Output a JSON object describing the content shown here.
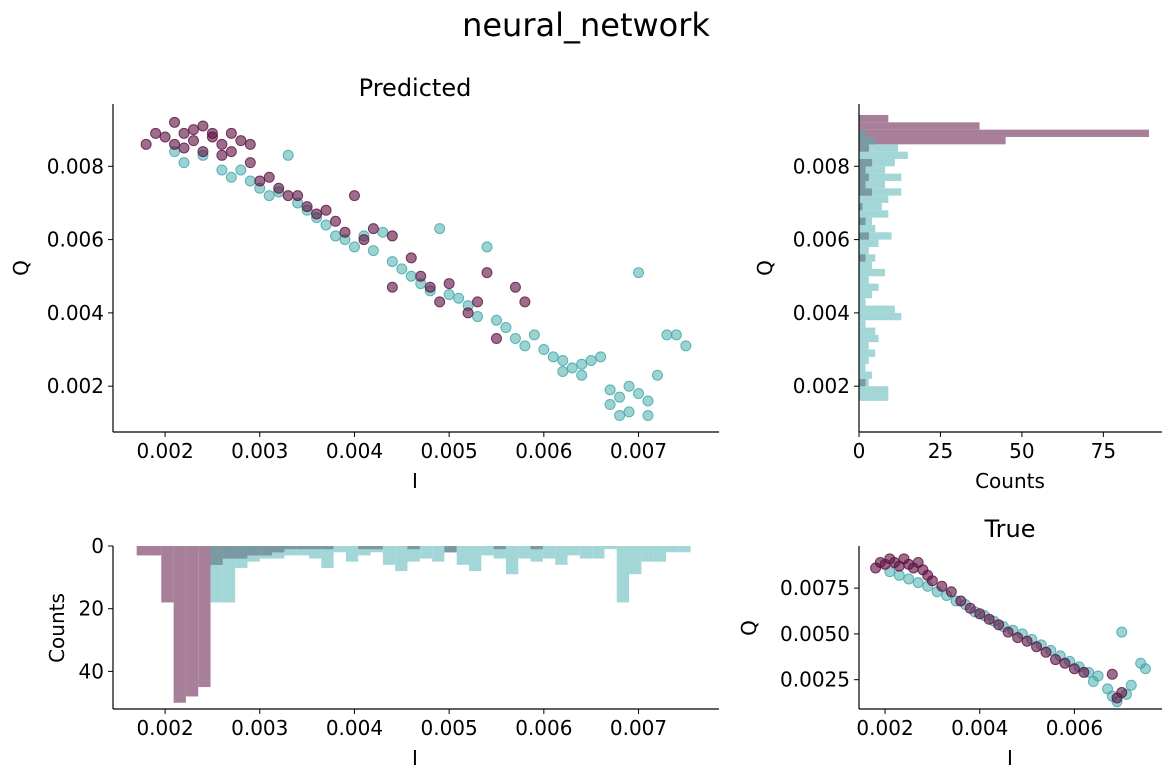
{
  "figure": {
    "suptitle": "neural_network"
  },
  "colors": {
    "class_a": "#5c0e3f",
    "class_b": "#3aa6a6",
    "hist_a": "#a77f98",
    "hist_b": "#a3d6d6",
    "hist_overlap": "#7a9aa3"
  },
  "chart_data": [
    {
      "id": "predicted",
      "type": "scatter",
      "title": "Predicted",
      "xlabel": "I",
      "ylabel": "Q",
      "xlim": [
        0.00145,
        0.00785
      ],
      "ylim": [
        0.00075,
        0.0097
      ],
      "xticks": [
        "0.002",
        "0.003",
        "0.004",
        "0.005",
        "0.006",
        "0.007"
      ],
      "yticks": [
        "0.002",
        "0.004",
        "0.006",
        "0.008"
      ],
      "grid": false,
      "series": [
        {
          "points": [
            [
              0.0018,
              0.0086
            ],
            [
              0.0019,
              0.0089
            ],
            [
              0.002,
              0.0088
            ],
            [
              0.0021,
              0.0092
            ],
            [
              0.0022,
              0.0089
            ],
            [
              0.0023,
              0.0087
            ],
            [
              0.0024,
              0.0091
            ],
            [
              0.0025,
              0.0088
            ],
            [
              0.0026,
              0.0086
            ],
            [
              0.0027,
              0.0089
            ],
            [
              0.0028,
              0.0087
            ],
            [
              0.0029,
              0.0086
            ],
            [
              0.0022,
              0.0085
            ],
            [
              0.0024,
              0.0084
            ],
            [
              0.0026,
              0.0083
            ],
            [
              0.0021,
              0.0086
            ],
            [
              0.0023,
              0.009
            ],
            [
              0.0025,
              0.0089
            ],
            [
              0.0027,
              0.0084
            ],
            [
              0.0029,
              0.0081
            ],
            [
              0.0031,
              0.0077
            ],
            [
              0.0032,
              0.0074
            ],
            [
              0.0034,
              0.0072
            ],
            [
              0.0035,
              0.0069
            ],
            [
              0.0036,
              0.0067
            ],
            [
              0.0038,
              0.0065
            ],
            [
              0.0039,
              0.0062
            ],
            [
              0.004,
              0.0072
            ],
            [
              0.0041,
              0.006
            ],
            [
              0.0042,
              0.0063
            ],
            [
              0.0044,
              0.0061
            ],
            [
              0.0046,
              0.0055
            ],
            [
              0.0047,
              0.005
            ],
            [
              0.0048,
              0.0047
            ],
            [
              0.0049,
              0.0043
            ],
            [
              0.005,
              0.0048
            ],
            [
              0.0052,
              0.004
            ],
            [
              0.0053,
              0.0043
            ],
            [
              0.0054,
              0.0051
            ],
            [
              0.0055,
              0.0033
            ],
            [
              0.0057,
              0.0047
            ],
            [
              0.0058,
              0.0043
            ],
            [
              0.0044,
              0.0047
            ],
            [
              0.0037,
              0.0068
            ],
            [
              0.0033,
              0.0072
            ],
            [
              0.003,
              0.0076
            ]
          ]
        },
        {
          "points": [
            [
              0.0021,
              0.0084
            ],
            [
              0.0022,
              0.0081
            ],
            [
              0.0024,
              0.0083
            ],
            [
              0.0026,
              0.0079
            ],
            [
              0.0027,
              0.0077
            ],
            [
              0.0028,
              0.0079
            ],
            [
              0.0029,
              0.0076
            ],
            [
              0.003,
              0.0074
            ],
            [
              0.0031,
              0.0072
            ],
            [
              0.0032,
              0.0073
            ],
            [
              0.0033,
              0.0083
            ],
            [
              0.0034,
              0.007
            ],
            [
              0.0035,
              0.0068
            ],
            [
              0.0036,
              0.0066
            ],
            [
              0.0037,
              0.0064
            ],
            [
              0.0038,
              0.0061
            ],
            [
              0.0039,
              0.006
            ],
            [
              0.004,
              0.0058
            ],
            [
              0.0041,
              0.0061
            ],
            [
              0.0042,
              0.0057
            ],
            [
              0.0043,
              0.0062
            ],
            [
              0.0044,
              0.0054
            ],
            [
              0.0045,
              0.0052
            ],
            [
              0.0046,
              0.005
            ],
            [
              0.0047,
              0.0048
            ],
            [
              0.0048,
              0.0046
            ],
            [
              0.0049,
              0.0063
            ],
            [
              0.005,
              0.0045
            ],
            [
              0.0051,
              0.0044
            ],
            [
              0.0052,
              0.0042
            ],
            [
              0.0053,
              0.0039
            ],
            [
              0.0054,
              0.0058
            ],
            [
              0.0055,
              0.0038
            ],
            [
              0.0056,
              0.0036
            ],
            [
              0.0057,
              0.0033
            ],
            [
              0.0058,
              0.0031
            ],
            [
              0.0059,
              0.0034
            ],
            [
              0.006,
              0.003
            ],
            [
              0.0061,
              0.0028
            ],
            [
              0.0062,
              0.0027
            ],
            [
              0.0063,
              0.0025
            ],
            [
              0.0064,
              0.0023
            ],
            [
              0.0065,
              0.0027
            ],
            [
              0.0066,
              0.0028
            ],
            [
              0.0067,
              0.0015
            ],
            [
              0.0068,
              0.0017
            ],
            [
              0.0069,
              0.0013
            ],
            [
              0.007,
              0.0051
            ],
            [
              0.0071,
              0.0016
            ],
            [
              0.0072,
              0.0023
            ],
            [
              0.0073,
              0.0034
            ],
            [
              0.0074,
              0.0034
            ],
            [
              0.0075,
              0.0031
            ],
            [
              0.0067,
              0.0019
            ],
            [
              0.0068,
              0.0012
            ],
            [
              0.0069,
              0.002
            ],
            [
              0.007,
              0.0018
            ],
            [
              0.0071,
              0.0012
            ],
            [
              0.0062,
              0.0024
            ],
            [
              0.0064,
              0.0026
            ]
          ]
        }
      ]
    },
    {
      "id": "q-histogram",
      "type": "bar",
      "orientation": "horizontal",
      "xlabel": "Counts",
      "ylabel": "Q",
      "xlim": [
        0,
        93
      ],
      "ylim": [
        0.00075,
        0.0097
      ],
      "xticks": [
        "0",
        "25",
        "50",
        "75"
      ],
      "yticks": [
        "0.002",
        "0.004",
        "0.006",
        "0.008"
      ],
      "bin_edges": [
        0.0016,
        0.0018,
        0.002,
        0.0022,
        0.0024,
        0.0026,
        0.0028,
        0.003,
        0.0032,
        0.0034,
        0.0036,
        0.0038,
        0.004,
        0.0042,
        0.0044,
        0.0046,
        0.0048,
        0.005,
        0.0052,
        0.0054,
        0.0056,
        0.0058,
        0.006,
        0.0062,
        0.0064,
        0.0066,
        0.0068,
        0.007,
        0.0072,
        0.0074,
        0.0076,
        0.0078,
        0.008,
        0.0082,
        0.0084,
        0.0086,
        0.0088,
        0.009,
        0.0092,
        0.0094
      ],
      "series": [
        {
          "values": [
            0,
            0,
            2,
            0,
            0,
            0,
            0,
            0,
            0,
            0,
            0,
            0,
            0,
            0,
            0,
            0,
            0,
            0,
            0,
            2,
            0,
            0,
            3,
            0,
            2,
            0,
            1,
            0,
            4,
            2,
            3,
            2,
            4,
            0,
            3,
            45,
            89,
            37,
            9
          ]
        },
        {
          "values": [
            9,
            9,
            3,
            4,
            2,
            3,
            5,
            3,
            6,
            5,
            2,
            13,
            11,
            2,
            4,
            6,
            3,
            8,
            4,
            5,
            3,
            6,
            10,
            5,
            4,
            9,
            7,
            9,
            13,
            8,
            13,
            8,
            11,
            15,
            12,
            5,
            2,
            0,
            0
          ]
        }
      ]
    },
    {
      "id": "i-histogram",
      "type": "bar",
      "xlabel": "I",
      "ylabel": "Counts",
      "xlim": [
        0.00145,
        0.00785
      ],
      "ylim": [
        0,
        52
      ],
      "xticks": [
        "0.002",
        "0.003",
        "0.004",
        "0.005",
        "0.006",
        "0.007"
      ],
      "yticks": [
        "0",
        "20",
        "40"
      ],
      "bin_edges": [
        0.0017,
        0.00183,
        0.00196,
        0.00209,
        0.00222,
        0.00235,
        0.00248,
        0.00261,
        0.00274,
        0.00287,
        0.003,
        0.00313,
        0.00326,
        0.00339,
        0.00352,
        0.00365,
        0.00378,
        0.00391,
        0.00404,
        0.00417,
        0.0043,
        0.00443,
        0.00456,
        0.00469,
        0.00482,
        0.00495,
        0.00508,
        0.00521,
        0.00534,
        0.00547,
        0.0056,
        0.00573,
        0.00586,
        0.00599,
        0.00612,
        0.00625,
        0.00638,
        0.00651,
        0.00664,
        0.00677,
        0.0069,
        0.00703,
        0.00716,
        0.00729,
        0.00742,
        0.00755
      ],
      "series": [
        {
          "values": [
            3,
            3,
            18,
            50,
            48,
            45,
            6,
            4,
            4,
            3,
            3,
            2,
            1,
            1,
            1,
            1,
            0,
            0,
            1,
            1,
            0,
            0,
            1,
            0,
            0,
            2,
            0,
            0,
            0,
            1,
            0,
            0,
            1,
            0,
            0,
            0,
            0,
            0,
            0,
            0,
            0,
            0,
            0,
            0,
            0
          ]
        },
        {
          "values": [
            0,
            0,
            0,
            0,
            0,
            0,
            18,
            18,
            7,
            5,
            4,
            4,
            3,
            3,
            4,
            7,
            2,
            5,
            3,
            2,
            6,
            8,
            5,
            4,
            5,
            2,
            6,
            8,
            3,
            4,
            9,
            4,
            5,
            4,
            6,
            3,
            4,
            4,
            1,
            18,
            9,
            5,
            5,
            2,
            2
          ]
        }
      ]
    },
    {
      "id": "true",
      "type": "scatter",
      "title": "True",
      "xlabel": "I",
      "ylabel": "Q",
      "xlim": [
        0.00145,
        0.00785
      ],
      "ylim": [
        0.0009,
        0.0098
      ],
      "xticks": [
        "0.002",
        "0.004",
        "0.006"
      ],
      "yticks": [
        "0.0025",
        "0.0050",
        "0.0075"
      ],
      "grid": false,
      "series": [
        {
          "points": [
            [
              0.0018,
              0.0086
            ],
            [
              0.0019,
              0.0089
            ],
            [
              0.002,
              0.0088
            ],
            [
              0.0021,
              0.0091
            ],
            [
              0.0022,
              0.0089
            ],
            [
              0.0023,
              0.0087
            ],
            [
              0.0024,
              0.0091
            ],
            [
              0.0025,
              0.0088
            ],
            [
              0.0026,
              0.0086
            ],
            [
              0.0027,
              0.0089
            ],
            [
              0.0028,
              0.0085
            ],
            [
              0.0029,
              0.0082
            ],
            [
              0.003,
              0.0079
            ],
            [
              0.0032,
              0.0076
            ],
            [
              0.0034,
              0.0073
            ],
            [
              0.0036,
              0.0068
            ],
            [
              0.0038,
              0.0064
            ],
            [
              0.004,
              0.0061
            ],
            [
              0.0042,
              0.0058
            ],
            [
              0.0044,
              0.0055
            ],
            [
              0.0046,
              0.0051
            ],
            [
              0.0048,
              0.0048
            ],
            [
              0.005,
              0.0046
            ],
            [
              0.0052,
              0.0043
            ],
            [
              0.0054,
              0.004
            ],
            [
              0.0056,
              0.0036
            ],
            [
              0.0058,
              0.0034
            ],
            [
              0.006,
              0.0031
            ],
            [
              0.0062,
              0.0029
            ],
            [
              0.0068,
              0.0028
            ],
            [
              0.0069,
              0.0015
            ],
            [
              0.007,
              0.0018
            ]
          ]
        },
        {
          "points": [
            [
              0.0021,
              0.0084
            ],
            [
              0.0023,
              0.0082
            ],
            [
              0.0025,
              0.008
            ],
            [
              0.0027,
              0.0078
            ],
            [
              0.0029,
              0.0076
            ],
            [
              0.0031,
              0.0073
            ],
            [
              0.0033,
              0.0071
            ],
            [
              0.0035,
              0.0068
            ],
            [
              0.0037,
              0.0066
            ],
            [
              0.0039,
              0.0062
            ],
            [
              0.0041,
              0.006
            ],
            [
              0.0043,
              0.0057
            ],
            [
              0.0045,
              0.0054
            ],
            [
              0.0047,
              0.0052
            ],
            [
              0.0049,
              0.005
            ],
            [
              0.0051,
              0.0047
            ],
            [
              0.0053,
              0.0044
            ],
            [
              0.0055,
              0.0041
            ],
            [
              0.0057,
              0.0038
            ],
            [
              0.0059,
              0.0035
            ],
            [
              0.0061,
              0.0032
            ],
            [
              0.0063,
              0.0029
            ],
            [
              0.0065,
              0.0027
            ],
            [
              0.0067,
              0.002
            ],
            [
              0.0068,
              0.0016
            ],
            [
              0.0069,
              0.0013
            ],
            [
              0.007,
              0.0051
            ],
            [
              0.0071,
              0.0017
            ],
            [
              0.0072,
              0.0022
            ],
            [
              0.0074,
              0.0034
            ],
            [
              0.0075,
              0.0031
            ],
            [
              0.0064,
              0.0024
            ]
          ]
        }
      ]
    }
  ]
}
